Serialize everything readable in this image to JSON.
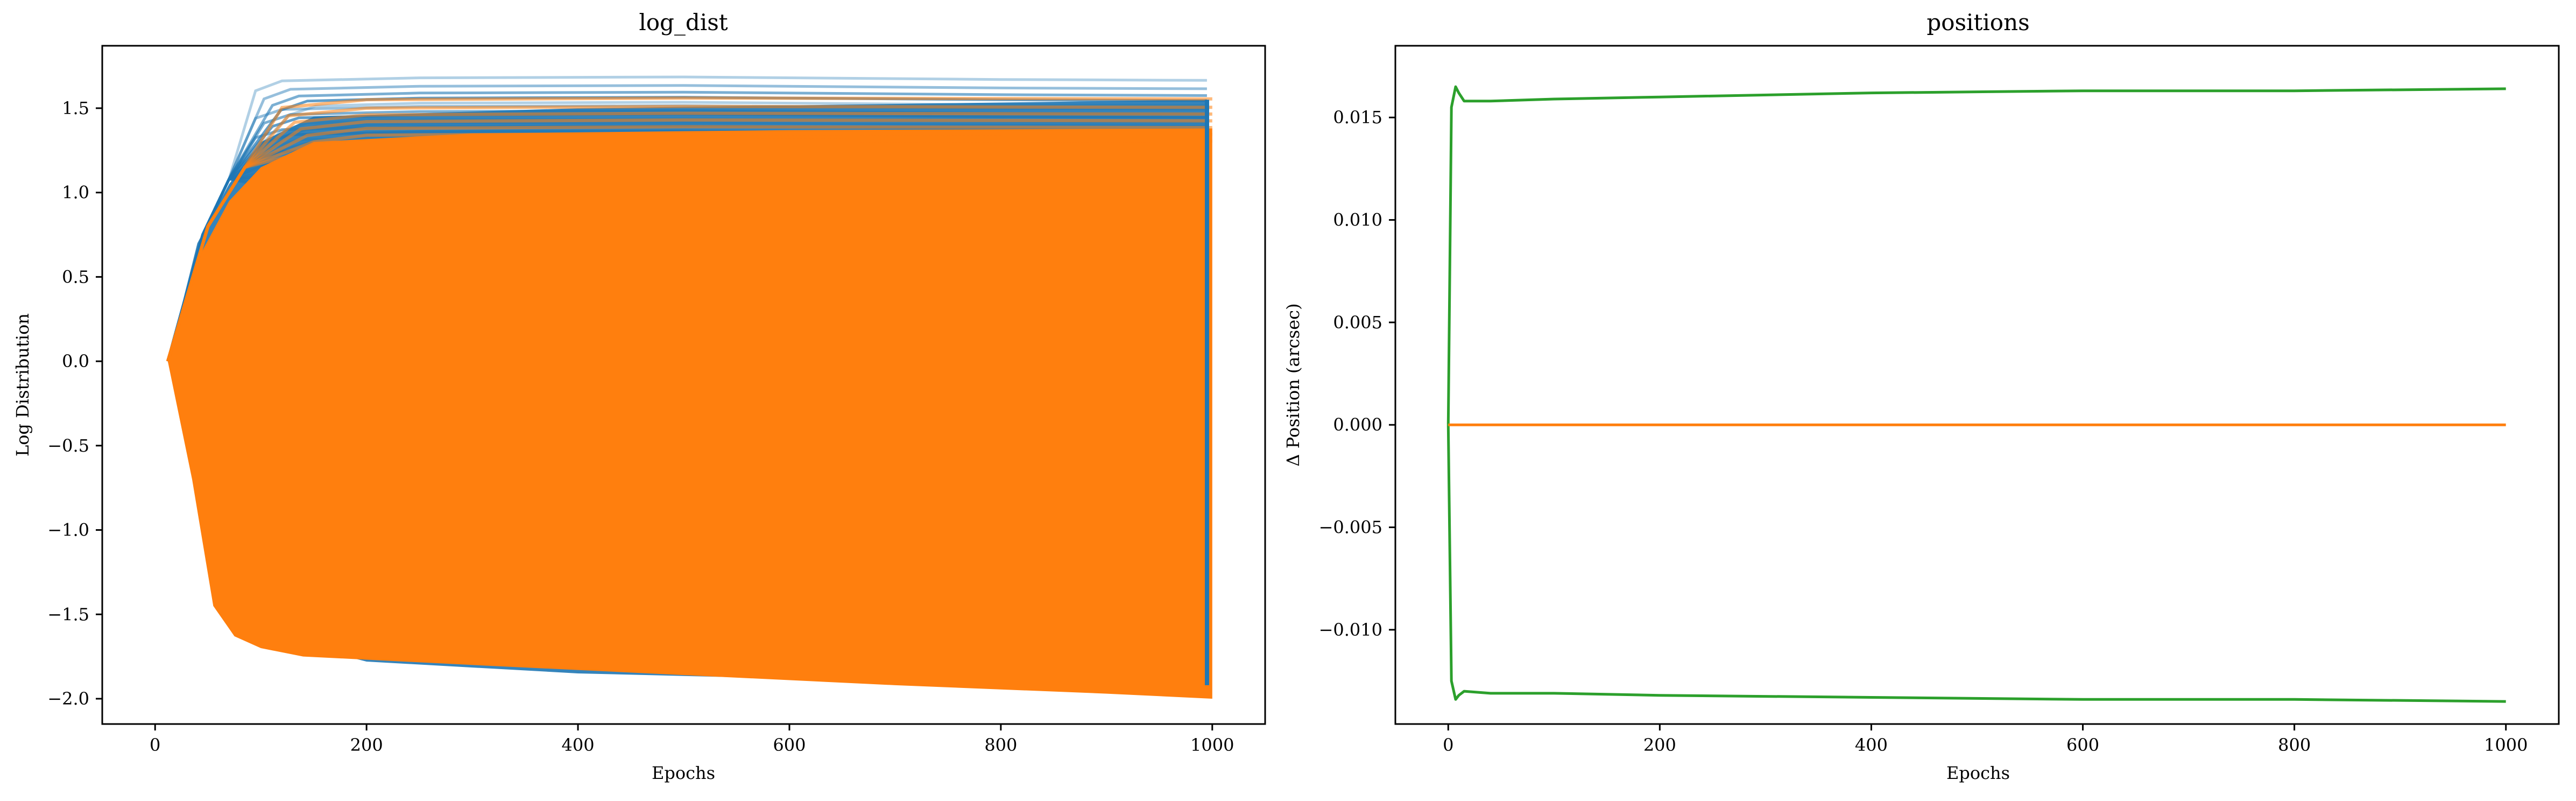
{
  "chart_data": [
    {
      "type": "line",
      "title": "log_dist",
      "xlabel": "Epochs",
      "ylabel": "Log Distribution",
      "xlim": [
        -50,
        1050
      ],
      "ylim": [
        -2.15,
        1.87
      ],
      "xticks": [
        0,
        200,
        400,
        600,
        800,
        1000
      ],
      "xtick_labels": [
        "0",
        "200",
        "400",
        "600",
        "800",
        "1000"
      ],
      "yticks": [
        -2.0,
        -1.5,
        -1.0,
        -0.5,
        0.0,
        0.5,
        1.0,
        1.5
      ],
      "ytick_labels": [
        "−2.0",
        "−1.5",
        "−1.0",
        "−0.5",
        "0.0",
        "0.5",
        "1.0",
        "1.5"
      ],
      "grid": false,
      "series": [
        {
          "color": "#1f77b4",
          "description_lines": "many semi-transparent lines rising from 0 at epoch ~12 to plateaus between 1.05 and 1.67 by epoch ~120",
          "plateaus": [
            1.67,
            1.62,
            1.58,
            1.55,
            1.52,
            1.5,
            1.47,
            1.45,
            1.42,
            1.4,
            1.38,
            1.35,
            1.32,
            1.3,
            1.27,
            1.25,
            1.22,
            1.2,
            1.18,
            1.15,
            1.12,
            1.1,
            1.07
          ],
          "lower_edge": [
            [
              12,
              0.0
            ],
            [
              70,
              -1.45
            ],
            [
              100,
              -1.62
            ],
            [
              200,
              -1.78
            ],
            [
              400,
              -1.85
            ],
            [
              600,
              -1.88
            ],
            [
              800,
              -1.9
            ],
            [
              995,
              -1.92
            ]
          ]
        },
        {
          "color": "#ff7f0e",
          "envelope_upper": [
            [
              12,
              0.0
            ],
            [
              40,
              0.6
            ],
            [
              70,
              0.95
            ],
            [
              100,
              1.15
            ],
            [
              150,
              1.3
            ],
            [
              300,
              1.35
            ],
            [
              600,
              1.37
            ],
            [
              1000,
              1.38
            ]
          ],
          "envelope_lower": [
            [
              12,
              0.0
            ],
            [
              35,
              -0.7
            ],
            [
              55,
              -1.45
            ],
            [
              75,
              -1.63
            ],
            [
              100,
              -1.7
            ],
            [
              140,
              -1.75
            ],
            [
              300,
              -1.8
            ],
            [
              500,
              -1.86
            ],
            [
              700,
              -1.92
            ],
            [
              900,
              -1.97
            ],
            [
              1000,
              -2.0
            ]
          ],
          "highlight_plateaus": [
            1.55,
            1.5,
            1.46,
            1.42,
            1.38,
            1.34,
            1.3
          ]
        }
      ]
    },
    {
      "type": "line",
      "title": "positions",
      "xlabel": "Epochs",
      "ylabel": "Δ Position (arcsec)",
      "xlim": [
        -50,
        1050
      ],
      "ylim": [
        -0.0146,
        0.0185
      ],
      "xticks": [
        0,
        200,
        400,
        600,
        800,
        1000
      ],
      "xtick_labels": [
        "0",
        "200",
        "400",
        "600",
        "800",
        "1000"
      ],
      "yticks": [
        -0.01,
        -0.005,
        0.0,
        0.005,
        0.01,
        0.015
      ],
      "ytick_labels": [
        "−0.010",
        "−0.005",
        "0.000",
        "0.005",
        "0.010",
        "0.015"
      ],
      "grid": false,
      "series": [
        {
          "color": "#2ca02c",
          "x": [
            0,
            3,
            7,
            10,
            15,
            40,
            100,
            200,
            400,
            600,
            800,
            1000
          ],
          "y": [
            0.0,
            0.0155,
            0.0165,
            0.0162,
            0.0158,
            0.0158,
            0.0159,
            0.016,
            0.0162,
            0.0163,
            0.0163,
            0.0164
          ]
        },
        {
          "color": "#2ca02c",
          "x": [
            0,
            3,
            7,
            10,
            15,
            40,
            100,
            200,
            400,
            600,
            800,
            1000
          ],
          "y": [
            0.0,
            -0.0125,
            -0.0134,
            -0.0132,
            -0.013,
            -0.0131,
            -0.0131,
            -0.0132,
            -0.0133,
            -0.0134,
            -0.0134,
            -0.0135
          ]
        },
        {
          "color": "#ff7f0e",
          "x": [
            0,
            1000
          ],
          "y": [
            0.0,
            0.0
          ]
        }
      ]
    }
  ]
}
